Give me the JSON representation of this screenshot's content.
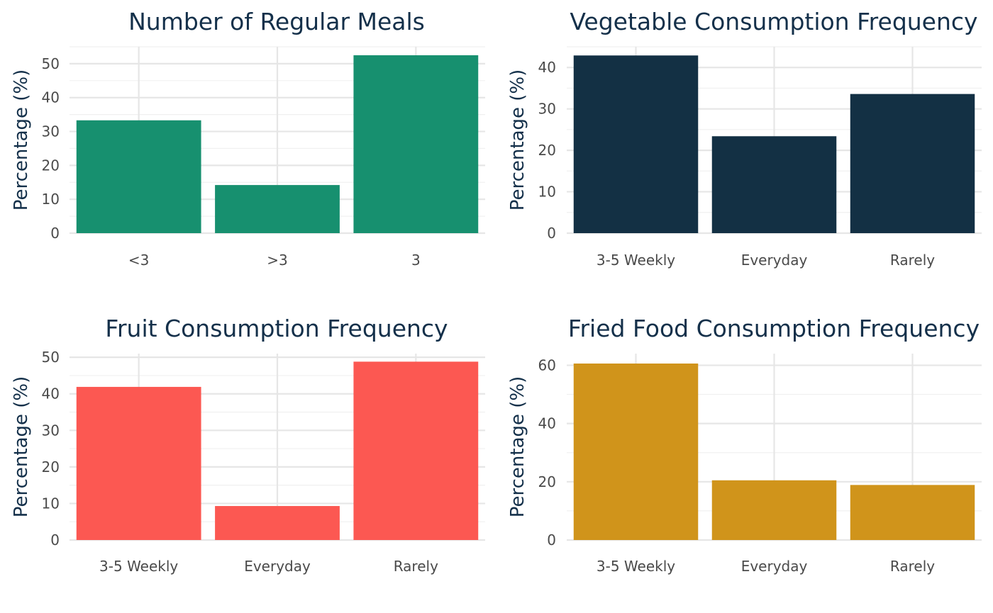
{
  "chart_data": [
    {
      "type": "bar",
      "title": "Number of Regular Meals",
      "ylabel": "Percentage (%)",
      "xlabel": "",
      "categories": [
        "<3",
        ">3",
        "3"
      ],
      "values": [
        33.3,
        14.2,
        52.5
      ],
      "ylim": [
        0,
        55
      ],
      "yticks": [
        0,
        10,
        20,
        30,
        40,
        50
      ],
      "color": "#17906f",
      "grid": true
    },
    {
      "type": "bar",
      "title": "Vegetable Consumption Frequency",
      "ylabel": "Percentage (%)",
      "xlabel": "",
      "categories": [
        "3-5 Weekly",
        "Everyday",
        "Rarely"
      ],
      "values": [
        42.9,
        23.4,
        33.6
      ],
      "ylim": [
        0,
        45
      ],
      "yticks": [
        0,
        10,
        20,
        30,
        40
      ],
      "color": "#133044",
      "grid": true
    },
    {
      "type": "bar",
      "title": "Fruit Consumption Frequency",
      "ylabel": "Percentage (%)",
      "xlabel": "",
      "categories": [
        "3-5 Weekly",
        "Everyday",
        "Rarely"
      ],
      "values": [
        41.9,
        9.3,
        48.8
      ],
      "ylim": [
        0,
        51
      ],
      "yticks": [
        0,
        10,
        20,
        30,
        40,
        50
      ],
      "color": "#fc5852",
      "grid": true
    },
    {
      "type": "bar",
      "title": "Fried Food Consumption Frequency",
      "ylabel": "Percentage (%)",
      "xlabel": "",
      "categories": [
        "3-5 Weekly",
        "Everyday",
        "Rarely"
      ],
      "values": [
        60.6,
        20.5,
        18.9
      ],
      "ylim": [
        0,
        64
      ],
      "yticks": [
        0,
        20,
        40,
        60
      ],
      "color": "#d0941b",
      "grid": true
    }
  ]
}
